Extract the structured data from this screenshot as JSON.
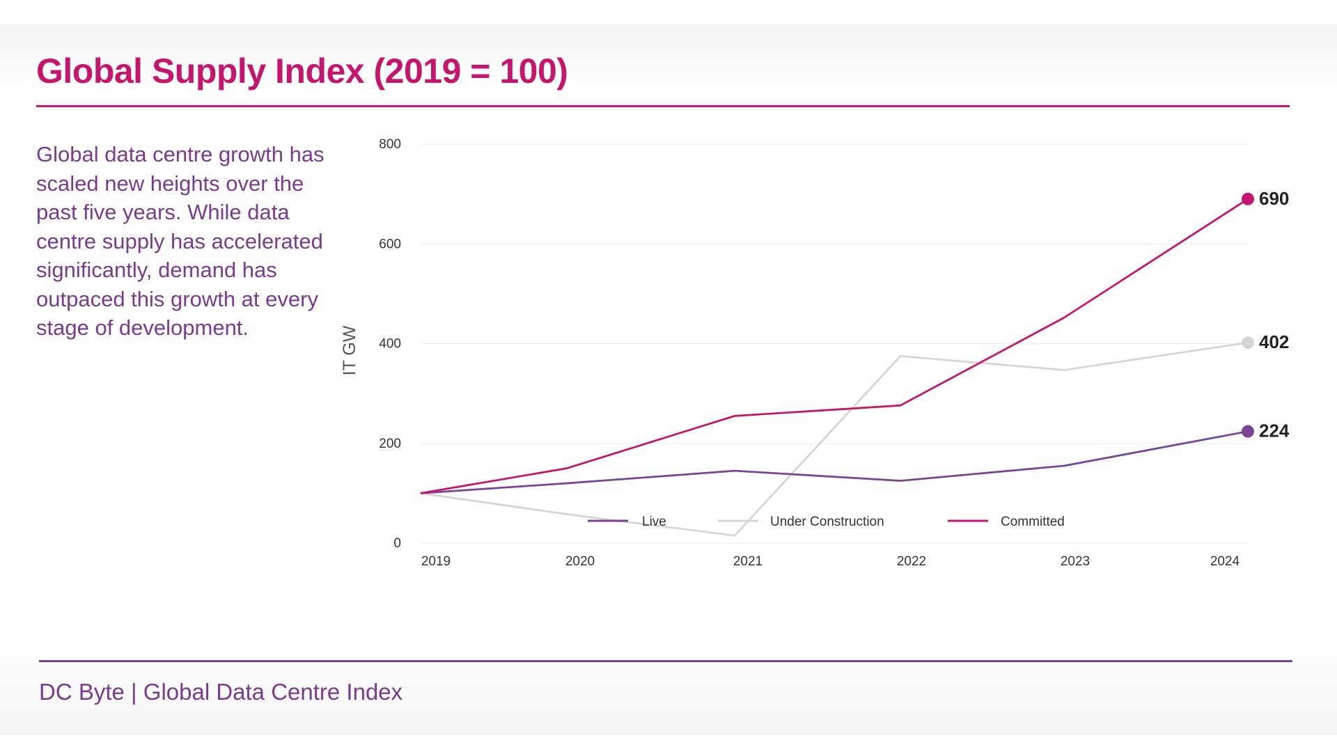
{
  "header": {
    "title": "Global Supply Index (2019 = 100)"
  },
  "description": "Global data centre growth has scaled new heights over the past five years. While data centre supply has accelerated significantly, demand has outpaced this growth at every stage of development.",
  "footer": {
    "source": "DC Byte | Global Data Centre Index"
  },
  "colors": {
    "accent": "#c4166e",
    "secondary": "#7a4393",
    "live": "#7a4393",
    "under_construction": "#d5d5d5",
    "committed": "#c4166e"
  },
  "chart_data": {
    "type": "line",
    "title": "Global Supply Index (2019 = 100)",
    "xlabel": "",
    "ylabel": "IT GW",
    "categories": [
      "2019",
      "2020",
      "2021",
      "2022",
      "2023",
      "2024"
    ],
    "ylim": [
      0,
      800
    ],
    "yticks": [
      0,
      200,
      400,
      600,
      800
    ],
    "grid": true,
    "legend_position": "bottom",
    "series": [
      {
        "name": "Live",
        "color": "#7a4393",
        "values": [
          100,
          120,
          145,
          125,
          155,
          224
        ],
        "end_label": "224",
        "end_marker": true
      },
      {
        "name": "Under Construction",
        "color": "#d5d5d5",
        "values": [
          100,
          58,
          15,
          375,
          347,
          402
        ],
        "end_label": "402",
        "end_marker": true
      },
      {
        "name": "Committed",
        "color": "#c4166e",
        "values": [
          100,
          150,
          255,
          276,
          452,
          690
        ],
        "end_label": "690",
        "end_marker": true
      }
    ]
  }
}
